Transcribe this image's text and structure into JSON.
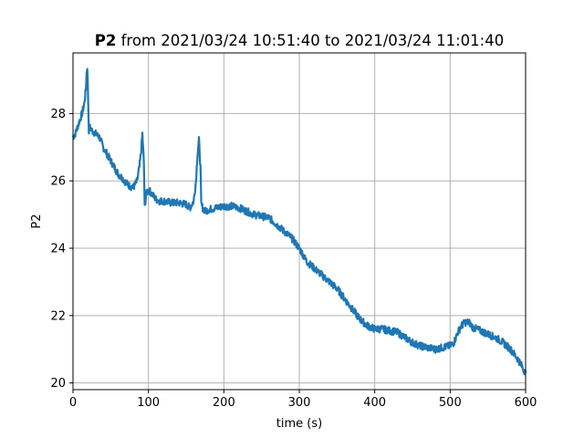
{
  "chart_data": {
    "type": "line",
    "title_bold": "P2",
    "title_rest": " from 2021/03/24 10:51:40 to 2021/03/24 11:01:40",
    "xlabel": "time (s)",
    "ylabel": "P2",
    "xlim": [
      0,
      600
    ],
    "ylim": [
      19.8,
      29.8
    ],
    "xticks": [
      0,
      100,
      200,
      300,
      400,
      500,
      600
    ],
    "yticks": [
      20,
      22,
      24,
      26,
      28
    ],
    "grid": true,
    "line_color": "#1f77b4",
    "series": [
      {
        "x": [
          0,
          3,
          6,
          9,
          12,
          15,
          17,
          18,
          19,
          20,
          21,
          22,
          25,
          30,
          35,
          40,
          45,
          50,
          55,
          60,
          65,
          70,
          75,
          80,
          85,
          88,
          90,
          92,
          94,
          95,
          97,
          100,
          105,
          110,
          115,
          120,
          130,
          140,
          150,
          155,
          160,
          163,
          165,
          167,
          169,
          170,
          172,
          175,
          180,
          190,
          200,
          210,
          220,
          230,
          240,
          250,
          260,
          270,
          280,
          290,
          300,
          305,
          310,
          320,
          330,
          340,
          350,
          360,
          370,
          380,
          390,
          400,
          410,
          420,
          430,
          440,
          450,
          460,
          470,
          480,
          490,
          500,
          505,
          510,
          515,
          520,
          525,
          530,
          540,
          550,
          560,
          570,
          580,
          590,
          595,
          600
        ],
        "y": [
          27.3,
          27.4,
          27.6,
          27.8,
          28.0,
          28.3,
          28.7,
          29.2,
          29.4,
          28.5,
          27.5,
          27.6,
          27.5,
          27.4,
          27.3,
          27.0,
          26.8,
          26.6,
          26.4,
          26.2,
          26.1,
          25.95,
          25.85,
          25.8,
          26.0,
          26.4,
          26.8,
          27.4,
          26.5,
          25.2,
          25.6,
          25.75,
          25.6,
          25.45,
          25.4,
          25.4,
          25.35,
          25.35,
          25.3,
          25.2,
          25.4,
          26.0,
          26.8,
          27.2,
          26.4,
          25.3,
          25.2,
          25.1,
          25.15,
          25.2,
          25.25,
          25.25,
          25.2,
          25.1,
          25.0,
          24.95,
          24.9,
          24.7,
          24.5,
          24.3,
          24.0,
          23.8,
          23.6,
          23.4,
          23.2,
          23.0,
          22.8,
          22.5,
          22.2,
          21.9,
          21.7,
          21.6,
          21.6,
          21.55,
          21.5,
          21.35,
          21.2,
          21.1,
          21.05,
          21.0,
          21.05,
          21.1,
          21.2,
          21.5,
          21.7,
          21.8,
          21.8,
          21.65,
          21.55,
          21.45,
          21.35,
          21.2,
          21.0,
          20.7,
          20.5,
          20.3
        ]
      }
    ]
  }
}
